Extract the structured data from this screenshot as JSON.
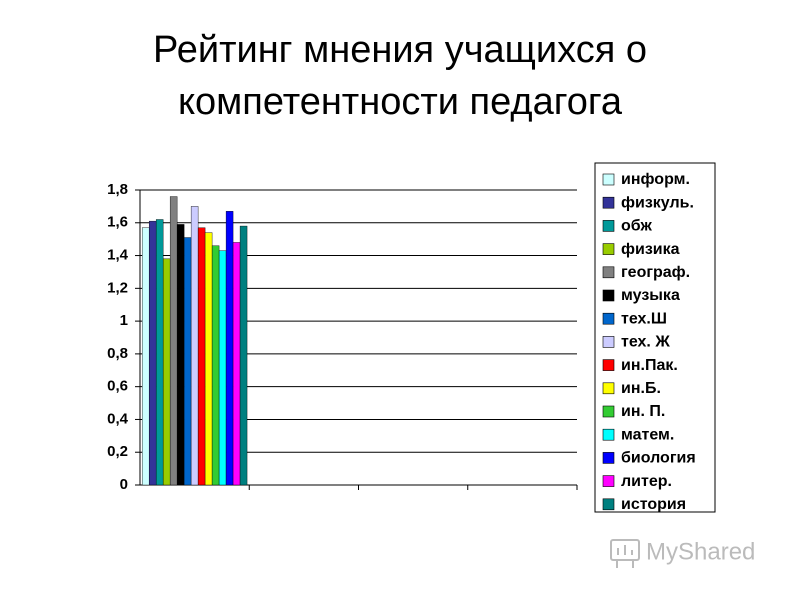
{
  "chart_data": {
    "type": "bar",
    "title": [
      "Рейтинг мнения  учащихся о",
      "компетентности педагога"
    ],
    "categories": [
      null,
      null,
      null,
      null
    ],
    "series": [
      {
        "name": "информ.",
        "color": "#ccffff",
        "values": [
          1.57,
          null,
          null,
          null
        ]
      },
      {
        "name": "физкуль.",
        "color": "#333399",
        "values": [
          1.61,
          null,
          null,
          null
        ]
      },
      {
        "name": "обж",
        "color": "#009999",
        "values": [
          1.62,
          null,
          null,
          null
        ]
      },
      {
        "name": "физика",
        "color": "#99cc00",
        "values": [
          1.38,
          null,
          null,
          null
        ]
      },
      {
        "name": "географ.",
        "color": "#808080",
        "values": [
          1.76,
          null,
          null,
          null
        ]
      },
      {
        "name": "музыка",
        "color": "#000000",
        "values": [
          1.59,
          null,
          null,
          null
        ]
      },
      {
        "name": "тех.Ш",
        "color": "#0066cc",
        "values": [
          1.51,
          null,
          null,
          null
        ]
      },
      {
        "name": "тех. Ж",
        "color": "#ccccff",
        "values": [
          1.7,
          null,
          null,
          null
        ]
      },
      {
        "name": "ин.Пак.",
        "color": "#ff0000",
        "values": [
          1.57,
          null,
          null,
          null
        ]
      },
      {
        "name": "ин.Б.",
        "color": "#ffff00",
        "values": [
          1.54,
          null,
          null,
          null
        ]
      },
      {
        "name": "ин. П.",
        "color": "#33cc33",
        "values": [
          1.46,
          null,
          null,
          null
        ]
      },
      {
        "name": "матем.",
        "color": "#00ffff",
        "values": [
          1.43,
          null,
          null,
          null
        ]
      },
      {
        "name": "биология",
        "color": "#0000ff",
        "values": [
          1.67,
          null,
          null,
          null
        ]
      },
      {
        "name": "литер.",
        "color": "#ff00ff",
        "values": [
          1.48,
          null,
          null,
          null
        ]
      },
      {
        "name": "история",
        "color": "#008080",
        "values": [
          1.58,
          null,
          null,
          null
        ]
      }
    ],
    "ylim": [
      0,
      1.8
    ],
    "yticks": [
      0,
      {
        "value": 0.2,
        "label": "0,2"
      },
      {
        "value": 0.4,
        "label": "0,4"
      },
      {
        "value": 0.6,
        "label": "0,6"
      },
      {
        "value": 0.8,
        "label": "0,8"
      },
      1,
      {
        "value": 1.2,
        "label": "1,2"
      },
      {
        "value": 1.4,
        "label": "1,4"
      },
      {
        "value": 1.6,
        "label": "1,6"
      },
      {
        "value": 1.8,
        "label": "1,8"
      }
    ],
    "grid": true,
    "legend": "right"
  },
  "watermark": "MyShared"
}
